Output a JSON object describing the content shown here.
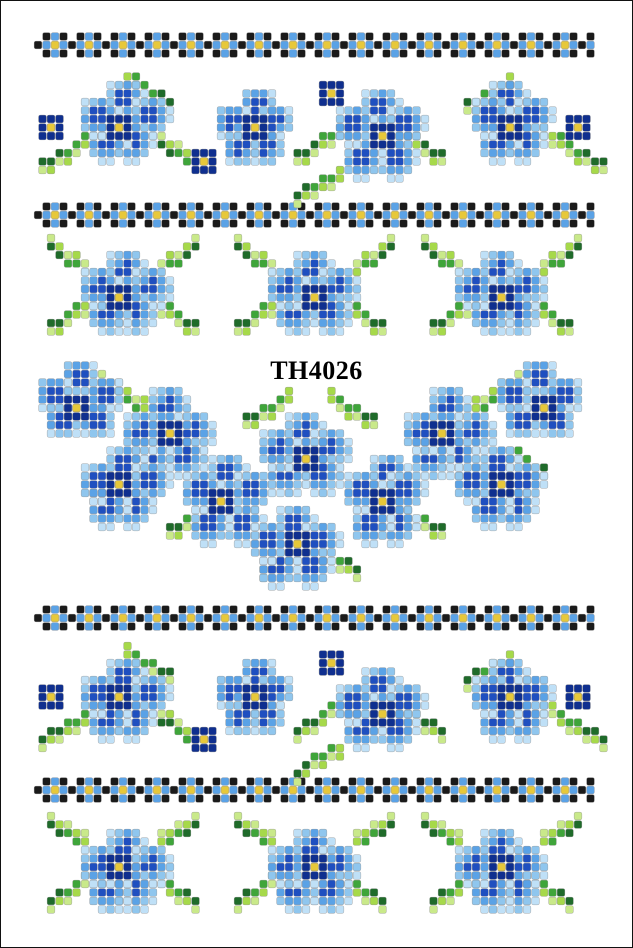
{
  "pattern": {
    "code": "TH4026",
    "colors": {
      "black": "#1a1a1a",
      "light_blue": "#8fc6ee",
      "pale_blue": "#bfe0f7",
      "sky_blue": "#5aa2e6",
      "mid_blue": "#3d7fd9",
      "royal_blue": "#1f4fc0",
      "navy": "#0f2f8f",
      "yellow": "#e7c83a",
      "dark_green": "#1f6b2a",
      "mid_green": "#3fa53a",
      "light_green": "#a6d94a",
      "pale_green": "#c9e98a",
      "bead_outline": "#8a8a8a"
    }
  }
}
